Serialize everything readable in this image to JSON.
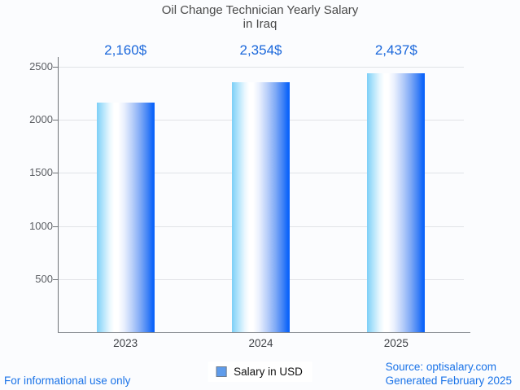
{
  "chart": {
    "title_line1": "Oil Change Technician Yearly Salary",
    "title_line2": "in Iraq"
  },
  "chart_data": {
    "type": "bar",
    "title": "Oil Change Technician Yearly Salary in Iraq",
    "categories": [
      "2023",
      "2024",
      "2025"
    ],
    "values": [
      2160,
      2354,
      2437
    ],
    "value_labels": [
      "2,160$",
      "2,354$",
      "2,437$"
    ],
    "series_name": "Salary in USD",
    "xlabel": "",
    "ylabel": "",
    "ylim": [
      0,
      2500
    ],
    "y_ticks": [
      500,
      1000,
      1500,
      2000,
      2500
    ],
    "grid": true,
    "legend_position": "bottom",
    "colors": {
      "bar_gradient_left": "#7ccff7",
      "bar_gradient_mid": "#ffffff",
      "bar_gradient_right": "#0b63fb",
      "annotation_text": "#1a67db",
      "gridline": "#e1e3e7",
      "axis_line": "#6f7377"
    }
  },
  "legend": {
    "label": "Salary in USD",
    "swatch_color": "#5f9ceb"
  },
  "footer": {
    "left_note": "For informational use only",
    "source_line": "Source: optisalary.com",
    "generated_line": "Generated February 2025",
    "link_color": "#1a73e8"
  }
}
